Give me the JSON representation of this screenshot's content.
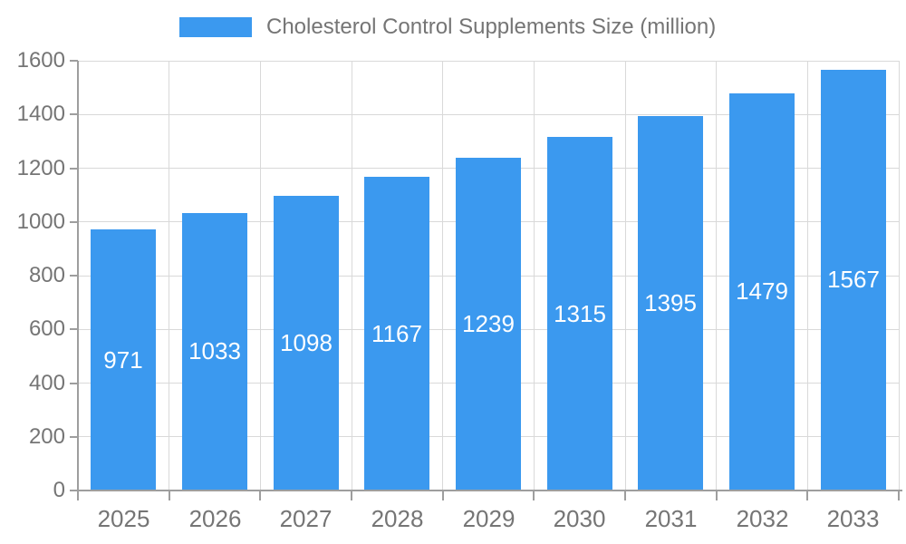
{
  "chart_data": {
    "type": "bar",
    "legend_label": "Cholesterol Control Supplements Size (million)",
    "legend_position": "top",
    "categories": [
      "2025",
      "2026",
      "2027",
      "2028",
      "2029",
      "2030",
      "2031",
      "2032",
      "2033"
    ],
    "values": [
      971,
      1033,
      1098,
      1167,
      1239,
      1315,
      1395,
      1479,
      1567
    ],
    "ylim": [
      0,
      1600
    ],
    "ytick_step": 200,
    "yticks": [
      0,
      200,
      400,
      600,
      800,
      1000,
      1200,
      1400,
      1600
    ],
    "grid": true,
    "colors": {
      "bar": "#3b99ef",
      "bar_value_text": "#ffffff",
      "axis_text": "#757575",
      "grid_line": "#d9d9d9",
      "axis_line": "#9e9e9e"
    }
  }
}
